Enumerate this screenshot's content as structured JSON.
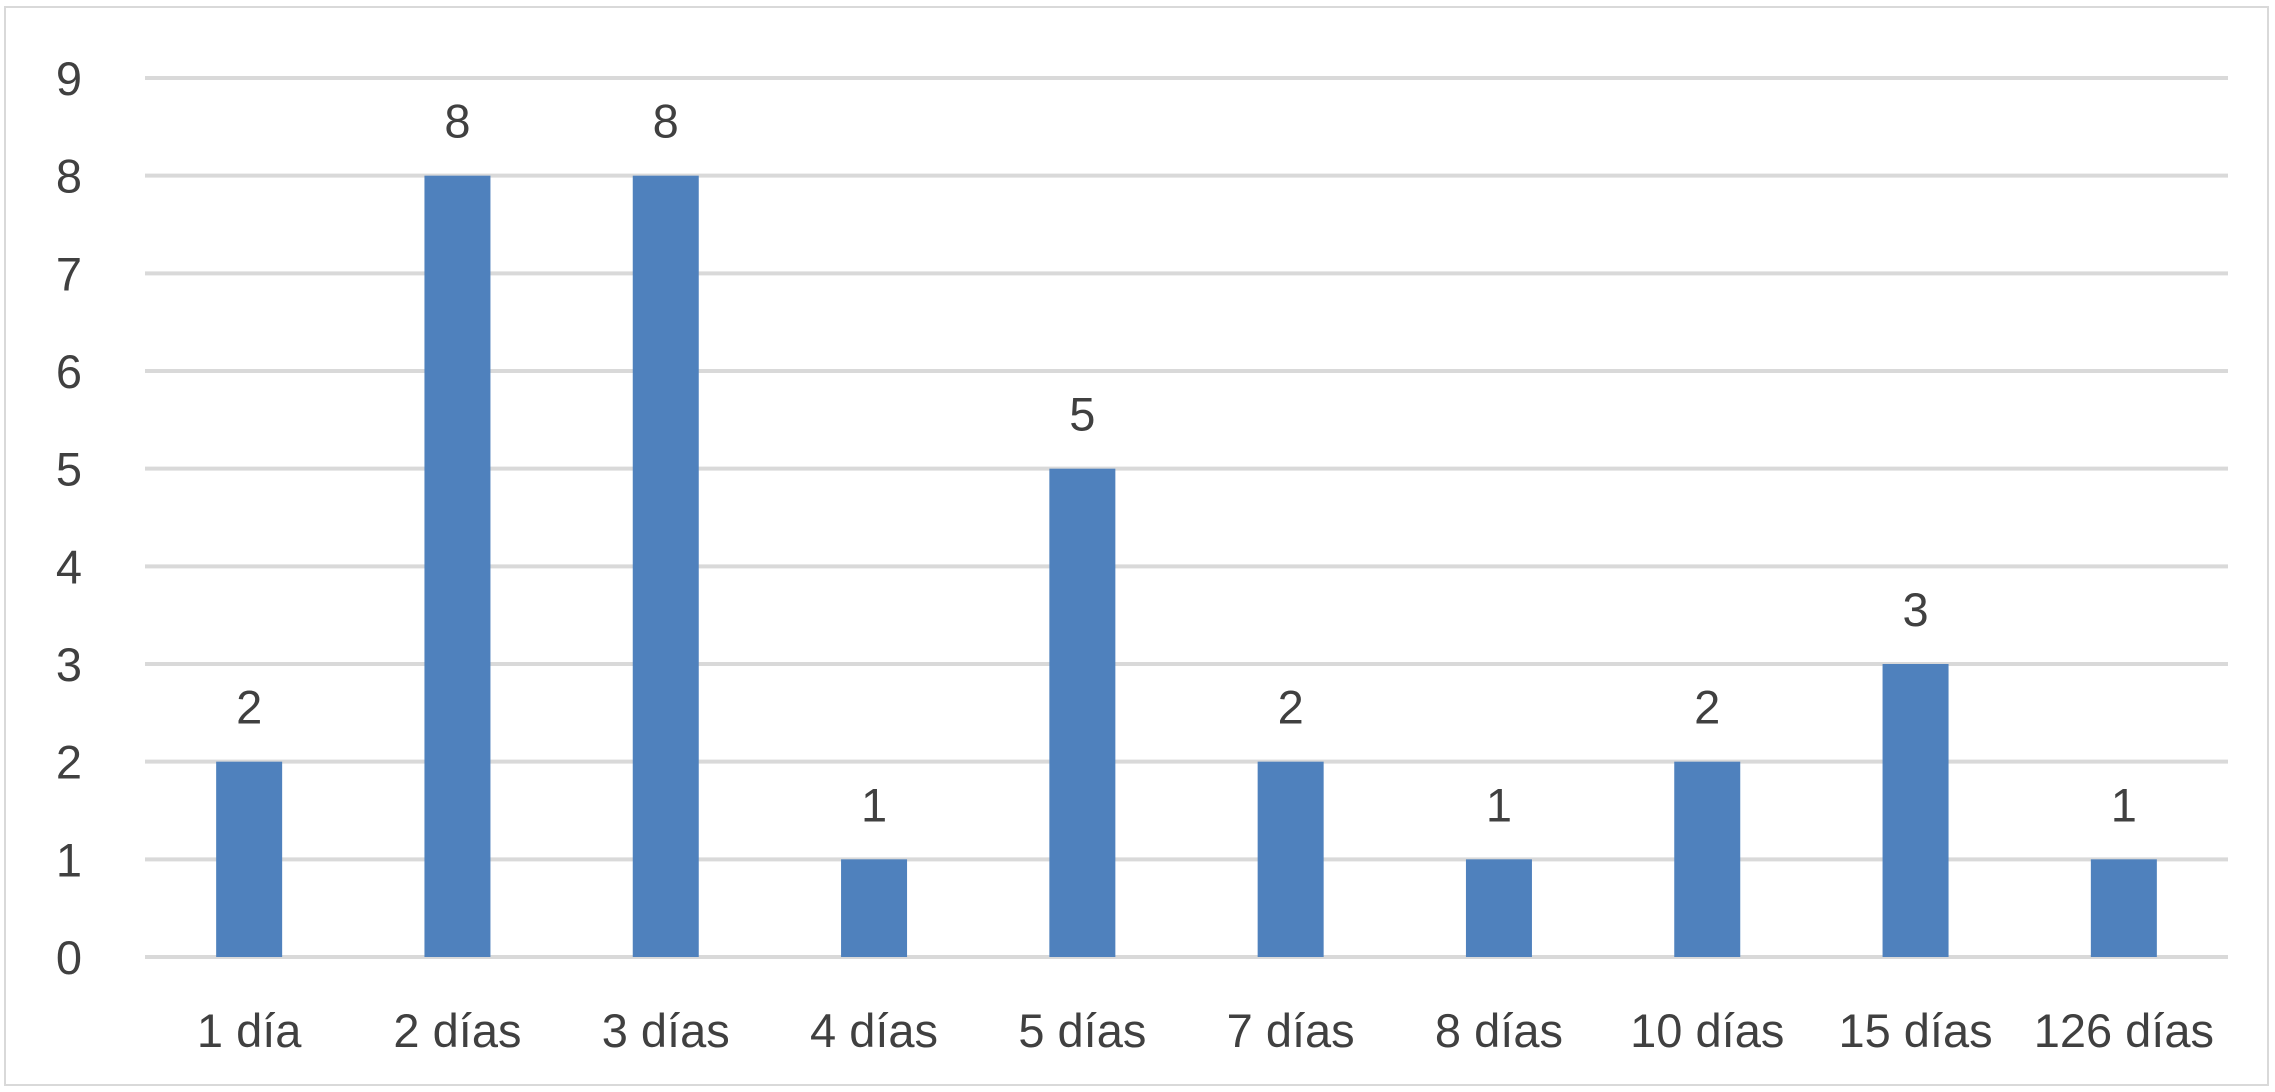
{
  "chart_data": {
    "type": "bar",
    "categories": [
      "1 día",
      "2 días",
      "3 días",
      "4 días",
      "5 días",
      "7 días",
      "8 días",
      "10 días",
      "15 días",
      "126 días"
    ],
    "values": [
      2,
      8,
      8,
      1,
      5,
      2,
      1,
      2,
      3,
      1
    ],
    "data_labels": [
      "2",
      "8",
      "8",
      "1",
      "5",
      "2",
      "1",
      "2",
      "3",
      "1"
    ],
    "ylim": [
      0,
      9
    ],
    "y_ticks": [
      "0",
      "1",
      "2",
      "3",
      "4",
      "5",
      "6",
      "7",
      "8",
      "9"
    ],
    "grid": true,
    "legend": false,
    "bar_color": "#4f81bd",
    "gridline_color": "#d9d9d9",
    "text_color": "#404040"
  }
}
